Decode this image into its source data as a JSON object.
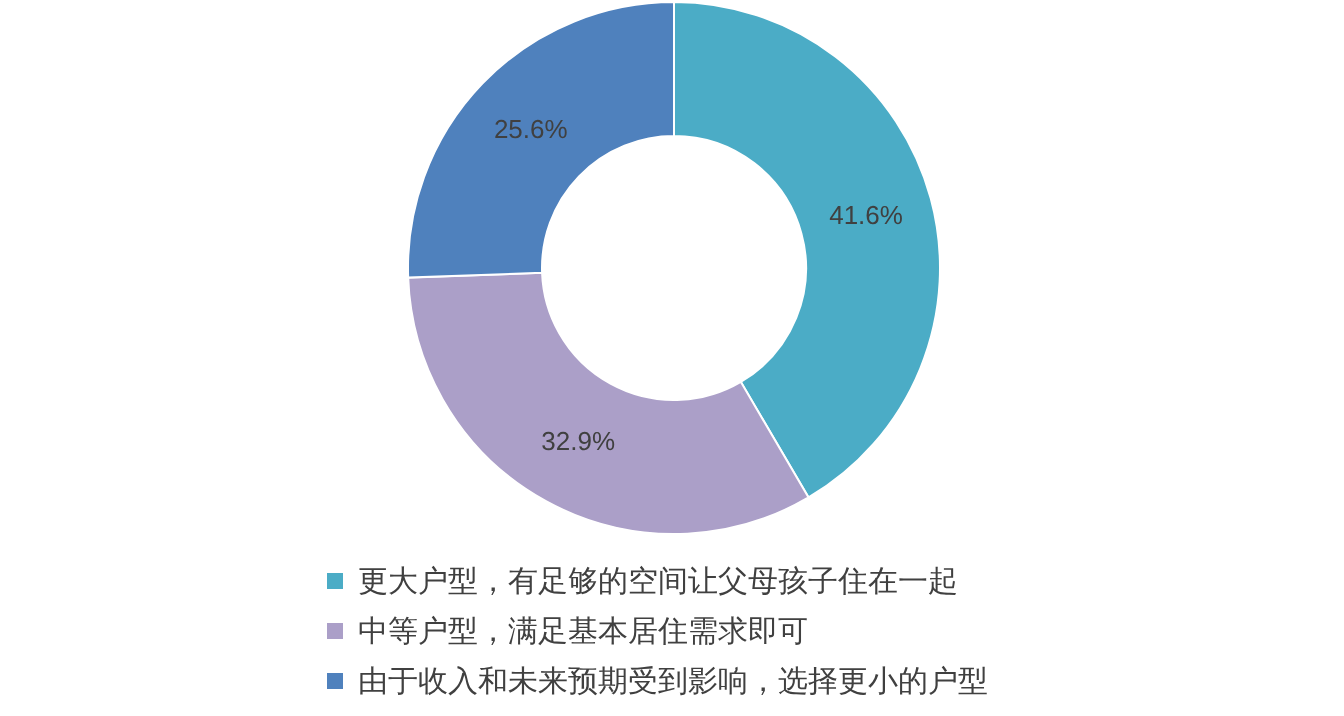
{
  "chart_data": {
    "type": "donut",
    "categories": [
      "更大户型，有足够的空间让父母孩子住在一起",
      "中等户型，满足基本居住需求即可",
      "由于收入和未来预期受到影响，选择更小的户型"
    ],
    "values": [
      41.6,
      32.9,
      25.6
    ],
    "colors": [
      "#4bacc6",
      "#ab9fc8",
      "#4f81bd"
    ],
    "value_labels": [
      "41.6%",
      "32.9%",
      "25.6%"
    ],
    "legend": "bottom"
  }
}
